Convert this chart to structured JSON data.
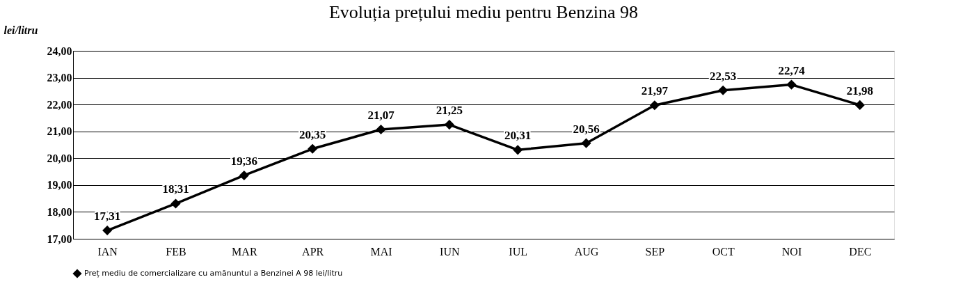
{
  "chart_data": {
    "type": "line",
    "title": "Evoluția prețului mediu pentru Benzina 98",
    "ylabel": "lei/litru",
    "categories": [
      "IAN",
      "FEB",
      "MAR",
      "APR",
      "MAI",
      "IUN",
      "IUL",
      "AUG",
      "SEP",
      "OCT",
      "NOI",
      "DEC"
    ],
    "series": [
      {
        "name": "Preț mediu de comercializare cu amănuntul a Benzinei A 98 lei/litru",
        "color": "#000000",
        "values": [
          17.31,
          18.31,
          19.36,
          20.35,
          21.07,
          21.25,
          20.31,
          20.56,
          21.97,
          22.53,
          22.74,
          21.98
        ],
        "value_labels": [
          "17,31",
          "18,31",
          "19,36",
          "20,35",
          "21,07",
          "21,25",
          "20,31",
          "20,56",
          "21,97",
          "22,53",
          "22,74",
          "21,98"
        ]
      }
    ],
    "ylim": [
      17,
      24
    ],
    "yticks": [
      {
        "value": 17,
        "label": "17,00"
      },
      {
        "value": 18,
        "label": "18,00"
      },
      {
        "value": 19,
        "label": "19,00"
      },
      {
        "value": 20,
        "label": "20,00"
      },
      {
        "value": 21,
        "label": "21,00"
      },
      {
        "value": 22,
        "label": "22,00"
      },
      {
        "value": 23,
        "label": "23,00"
      },
      {
        "value": 24,
        "label": "24,00"
      }
    ],
    "grid": "y",
    "legend": "bottom",
    "marker": "diamond",
    "line_style": "solid"
  }
}
